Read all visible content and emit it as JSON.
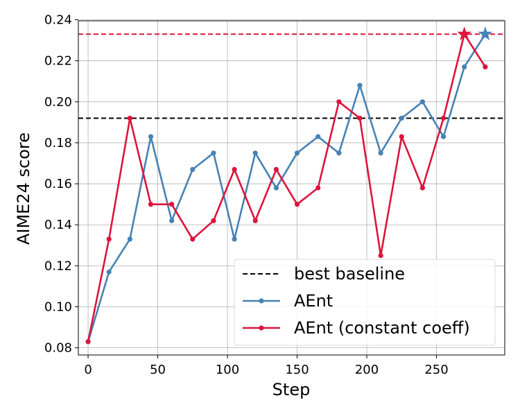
{
  "chart_data": {
    "type": "line",
    "xlabel": "Step",
    "ylabel": "AIME24 score",
    "xlim": [
      -7,
      299
    ],
    "ylim": [
      0.0765,
      0.2395
    ],
    "xticks": [
      0,
      50,
      100,
      150,
      200,
      250
    ],
    "yticks": [
      0.08,
      0.1,
      0.12,
      0.14,
      0.16,
      0.18,
      0.2,
      0.22,
      0.24
    ],
    "grid": true,
    "legend_position": "bottom-right",
    "reference_lines": [
      {
        "name": "best baseline",
        "y": 0.192,
        "color": "#000000",
        "style": "dashed"
      },
      {
        "name": "",
        "y": 0.233,
        "color": "#dc143c",
        "style": "dashed"
      }
    ],
    "series": [
      {
        "name": "AEnt",
        "color": "#4682b4",
        "x": [
          0,
          15,
          30,
          45,
          60,
          75,
          90,
          105,
          120,
          135,
          150,
          165,
          180,
          195,
          210,
          225,
          240,
          255,
          270,
          285
        ],
        "y": [
          0.083,
          0.117,
          0.133,
          0.183,
          0.142,
          0.167,
          0.175,
          0.133,
          0.175,
          0.158,
          0.175,
          0.183,
          0.175,
          0.208,
          0.175,
          0.192,
          0.2,
          0.183,
          0.217,
          0.233
        ],
        "best_marker": {
          "x": 285,
          "y": 0.233,
          "shape": "star"
        }
      },
      {
        "name": "AEnt (constant coeff)",
        "color": "#dc143c",
        "x": [
          0,
          15,
          30,
          45,
          60,
          75,
          90,
          105,
          120,
          135,
          150,
          165,
          180,
          195,
          210,
          225,
          240,
          255,
          270,
          285
        ],
        "y": [
          0.083,
          0.133,
          0.192,
          0.15,
          0.15,
          0.133,
          0.142,
          0.167,
          0.142,
          0.167,
          0.15,
          0.158,
          0.2,
          0.192,
          0.125,
          0.183,
          0.158,
          0.192,
          0.233,
          0.217
        ],
        "best_marker": {
          "x": 270,
          "y": 0.233,
          "shape": "star"
        }
      }
    ]
  }
}
